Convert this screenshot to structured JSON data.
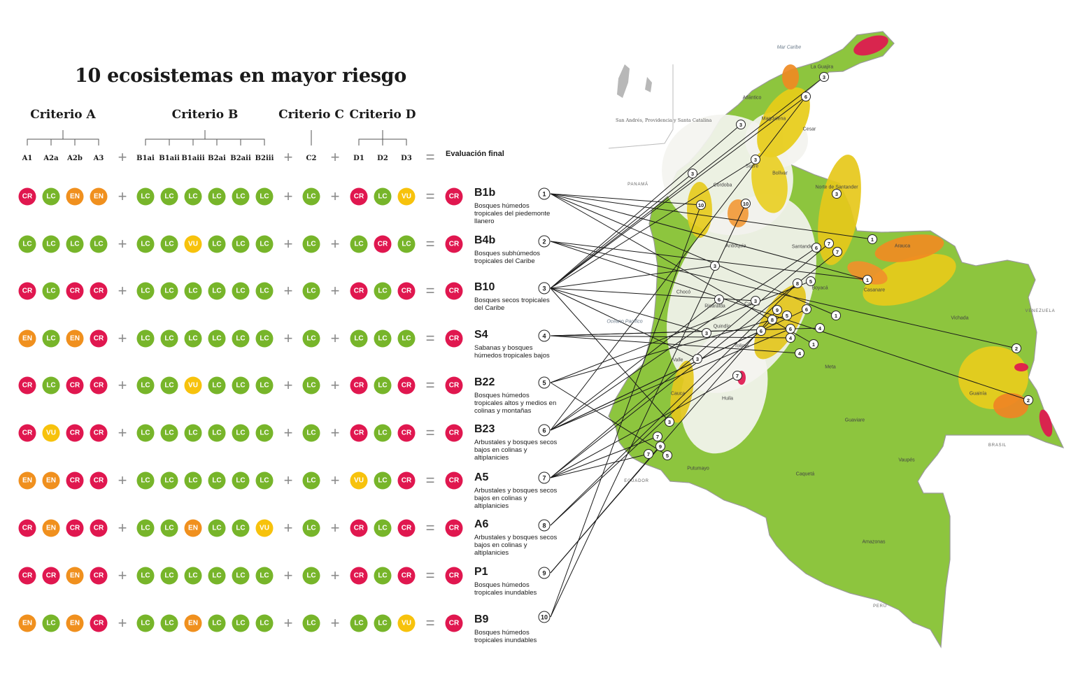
{
  "title": "10 ecosistemas en mayor riesgo",
  "criteria": [
    {
      "title": "Criterio A",
      "subs": [
        "A1",
        "A2a",
        "A2b",
        "A3"
      ]
    },
    {
      "title": "Criterio B",
      "subs": [
        "B1ai",
        "B1aii",
        "B1aiii",
        "B2ai",
        "B2aii",
        "B2iii"
      ]
    },
    {
      "title": "Criterio C",
      "subs": [
        "C2"
      ]
    },
    {
      "title": "Criterio D",
      "subs": [
        "D1",
        "D2",
        "D3"
      ]
    }
  ],
  "final_label": "Evaluación final",
  "operators": {
    "plus": "+",
    "equals": "="
  },
  "colors": {
    "CR": "#e0174f",
    "EN": "#f0901e",
    "VU": "#f7c20c",
    "LC": "#77b52a"
  },
  "rows": [
    {
      "num": "1",
      "code": "B1b",
      "desc": "Bosques húmedos tropicales del piedemonte llanero",
      "A": [
        "CR",
        "LC",
        "EN",
        "EN"
      ],
      "B": [
        "LC",
        "LC",
        "LC",
        "LC",
        "LC",
        "LC"
      ],
      "C": [
        "LC"
      ],
      "D": [
        "CR",
        "LC",
        "VU"
      ],
      "final": "CR"
    },
    {
      "num": "2",
      "code": "B4b",
      "desc": "Bosques subhúmedos tropicales del Caribe",
      "A": [
        "LC",
        "LC",
        "LC",
        "LC"
      ],
      "B": [
        "LC",
        "LC",
        "VU",
        "LC",
        "LC",
        "LC"
      ],
      "C": [
        "LC"
      ],
      "D": [
        "LC",
        "CR",
        "LC"
      ],
      "final": "CR"
    },
    {
      "num": "3",
      "code": "B10",
      "desc": "Bosques secos tropicales del Caribe",
      "A": [
        "CR",
        "LC",
        "CR",
        "CR"
      ],
      "B": [
        "LC",
        "LC",
        "LC",
        "LC",
        "LC",
        "LC"
      ],
      "C": [
        "LC"
      ],
      "D": [
        "CR",
        "LC",
        "CR"
      ],
      "final": "CR"
    },
    {
      "num": "4",
      "code": "S4",
      "desc": "Sabanas y bosques húmedos tropicales bajos",
      "A": [
        "EN",
        "LC",
        "EN",
        "CR"
      ],
      "B": [
        "LC",
        "LC",
        "LC",
        "LC",
        "LC",
        "LC"
      ],
      "C": [
        "LC"
      ],
      "D": [
        "LC",
        "LC",
        "LC"
      ],
      "final": "CR"
    },
    {
      "num": "5",
      "code": "B22",
      "desc": "Bosques húmedos tropicales altos y medios en colinas y montañas",
      "A": [
        "CR",
        "LC",
        "CR",
        "CR"
      ],
      "B": [
        "LC",
        "LC",
        "VU",
        "LC",
        "LC",
        "LC"
      ],
      "C": [
        "LC"
      ],
      "D": [
        "CR",
        "LC",
        "CR"
      ],
      "final": "CR"
    },
    {
      "num": "6",
      "code": "B23",
      "desc": "Arbustales y bosques secos bajos en colinas y altiplanicies",
      "A": [
        "CR",
        "VU",
        "CR",
        "CR"
      ],
      "B": [
        "LC",
        "LC",
        "LC",
        "LC",
        "LC",
        "LC"
      ],
      "C": [
        "LC"
      ],
      "D": [
        "CR",
        "LC",
        "CR"
      ],
      "final": "CR"
    },
    {
      "num": "7",
      "code": "A5",
      "desc": "Arbustales y bosques secos bajos en colinas y altiplanicies",
      "A": [
        "EN",
        "EN",
        "CR",
        "CR"
      ],
      "B": [
        "LC",
        "LC",
        "LC",
        "LC",
        "LC",
        "LC"
      ],
      "C": [
        "LC"
      ],
      "D": [
        "VU",
        "LC",
        "CR"
      ],
      "final": "CR"
    },
    {
      "num": "8",
      "code": "A6",
      "desc": "Arbustales y bosques secos bajos en colinas y altiplanicies",
      "A": [
        "CR",
        "EN",
        "CR",
        "CR"
      ],
      "B": [
        "LC",
        "LC",
        "EN",
        "LC",
        "LC",
        "VU"
      ],
      "C": [
        "LC"
      ],
      "D": [
        "CR",
        "LC",
        "CR"
      ],
      "final": "CR"
    },
    {
      "num": "9",
      "code": "P1",
      "desc": "Bosques húmedos tropicales inundables",
      "A": [
        "CR",
        "CR",
        "EN",
        "CR"
      ],
      "B": [
        "LC",
        "LC",
        "LC",
        "LC",
        "LC",
        "LC"
      ],
      "C": [
        "LC"
      ],
      "D": [
        "CR",
        "LC",
        "CR"
      ],
      "final": "CR"
    },
    {
      "num": "10",
      "code": "B9",
      "desc": "Bosques húmedos tropicales inundables",
      "A": [
        "EN",
        "LC",
        "EN",
        "CR"
      ],
      "B": [
        "LC",
        "LC",
        "EN",
        "LC",
        "LC",
        "LC"
      ],
      "C": [
        "LC"
      ],
      "D": [
        "LC",
        "LC",
        "VU"
      ],
      "final": "CR"
    }
  ],
  "map": {
    "inset_label": "San Andrés, Providencia y Santa Catalina",
    "labels": [
      "Mar Caribe",
      "La Guajira",
      "Atlántico",
      "Magdalena",
      "Cesar",
      "Sucre",
      "Bolívar",
      "Córdoba",
      "Norte de Santander",
      "Antioquia",
      "Santander",
      "Arauca",
      "Casanare",
      "Boyacá",
      "Chocó",
      "Caldas",
      "Risaralda",
      "Quindío",
      "Tolima",
      "Valle",
      "Cauca",
      "Huila",
      "Meta",
      "Vichada",
      "Guainía",
      "Guaviare",
      "Vaupés",
      "Caquetá",
      "Putumayo",
      "Amazonas",
      "Océano Pacífico",
      "PANAMÁ",
      "VENEZUELA",
      "BRASIL",
      "PERÚ",
      "ECUADOR"
    ],
    "markers": [
      {
        "n": "3"
      },
      {
        "n": "6"
      },
      {
        "n": "3"
      },
      {
        "n": "3"
      },
      {
        "n": "3"
      },
      {
        "n": "10"
      },
      {
        "n": "10"
      },
      {
        "n": "3"
      },
      {
        "n": "6"
      },
      {
        "n": "7"
      },
      {
        "n": "7"
      },
      {
        "n": "1"
      },
      {
        "n": "1"
      },
      {
        "n": "3"
      },
      {
        "n": "8"
      },
      {
        "n": "5"
      },
      {
        "n": "6"
      },
      {
        "n": "3"
      },
      {
        "n": "9"
      },
      {
        "n": "6"
      },
      {
        "n": "5"
      },
      {
        "n": "8"
      },
      {
        "n": "6"
      },
      {
        "n": "1"
      },
      {
        "n": "4"
      },
      {
        "n": "3"
      },
      {
        "n": "6"
      },
      {
        "n": "4"
      },
      {
        "n": "1"
      },
      {
        "n": "4"
      },
      {
        "n": "3"
      },
      {
        "n": "7"
      },
      {
        "n": "2"
      },
      {
        "n": "2"
      },
      {
        "n": "7"
      },
      {
        "n": "3"
      },
      {
        "n": "7"
      },
      {
        "n": "9"
      },
      {
        "n": "5"
      },
      {
        "n": "7"
      }
    ]
  }
}
